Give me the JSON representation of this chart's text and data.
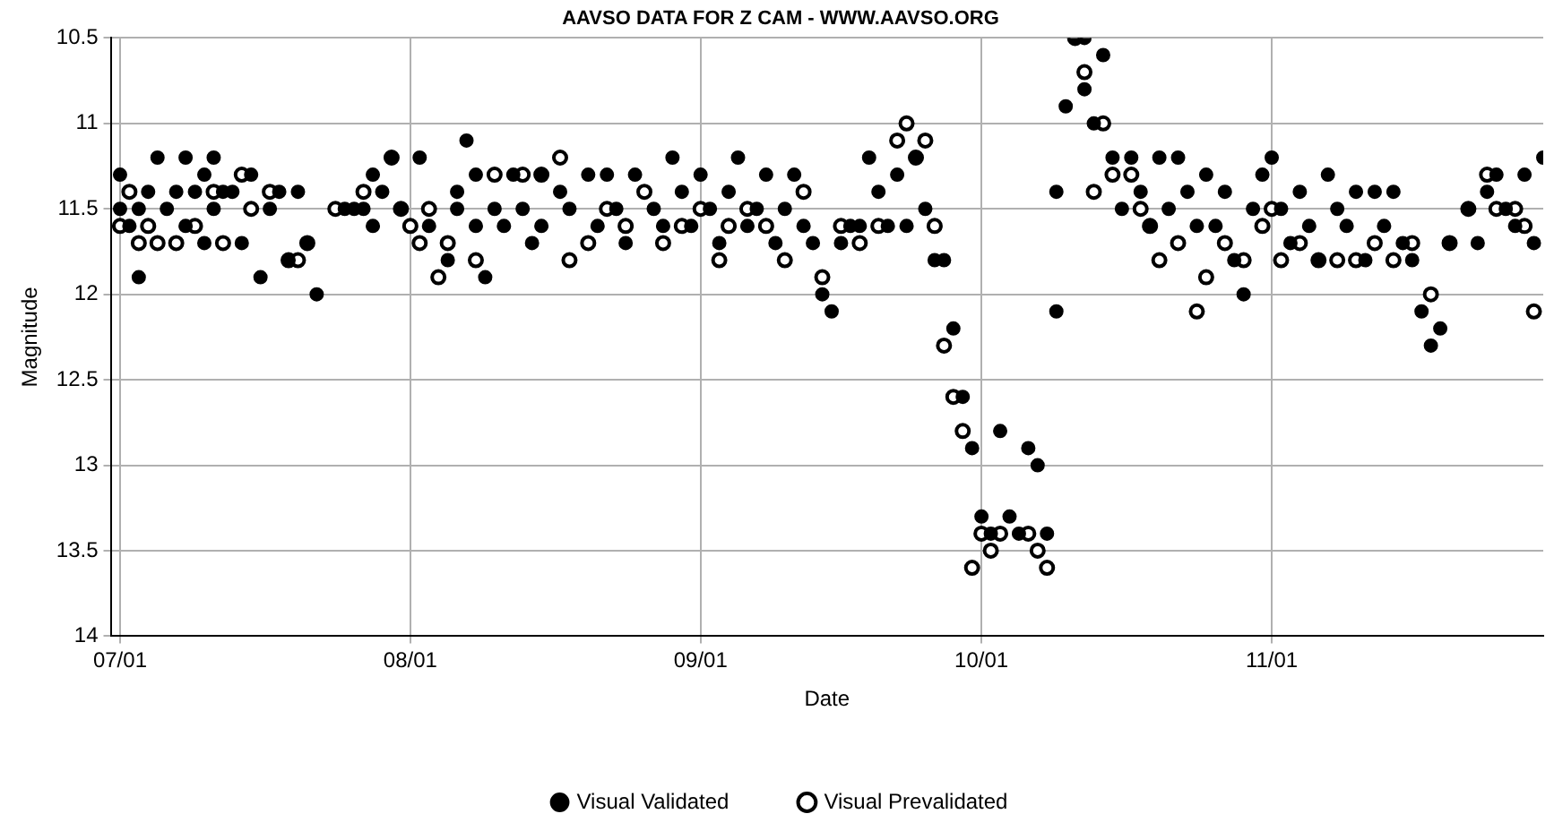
{
  "chart_data": {
    "type": "scatter",
    "title": "AAVSO DATA FOR Z CAM - WWW.AAVSO.ORG",
    "xlabel": "Date",
    "ylabel": "Magnitude",
    "xlim": [
      "--06-30",
      "--11-30"
    ],
    "xticks": [
      {
        "value": "--07-01",
        "label": "07/01"
      },
      {
        "value": "--08-01",
        "label": "08/01"
      },
      {
        "value": "--09-01",
        "label": "09/01"
      },
      {
        "value": "--10-01",
        "label": "10/01"
      },
      {
        "value": "--11-01",
        "label": "11/01"
      }
    ],
    "ylim": [
      14,
      10.5
    ],
    "yticks": [
      10.5,
      11,
      11.5,
      12,
      12.5,
      13,
      13.5,
      14
    ],
    "grid": true,
    "legend": "bottom",
    "marker": "circle",
    "series": [
      {
        "name": "Visual Validated",
        "color": "#000000",
        "x": [
          "--07-01",
          "--07-01",
          "--07-02",
          "--07-03",
          "--07-03",
          "--07-04",
          "--07-05",
          "--07-06",
          "--07-07",
          "--07-08",
          "--07-08",
          "--07-09",
          "--07-10",
          "--07-10",
          "--07-11",
          "--07-11",
          "--07-12",
          "--07-13",
          "--07-14",
          "--07-15",
          "--07-16",
          "--07-17",
          "--07-18",
          "--07-19",
          "--07-20",
          "--07-21",
          "--07-22",
          "--07-25",
          "--07-26",
          "--07-27",
          "--07-28",
          "--07-28",
          "--07-29",
          "--07-30",
          "--07-31",
          "--08-02",
          "--08-03",
          "--08-05",
          "--08-06",
          "--08-06",
          "--08-07",
          "--08-08",
          "--08-08",
          "--08-09",
          "--08-10",
          "--08-11",
          "--08-12",
          "--08-13",
          "--08-14",
          "--08-15",
          "--08-15",
          "--08-17",
          "--08-18",
          "--08-20",
          "--08-21",
          "--08-22",
          "--08-23",
          "--08-24",
          "--08-25",
          "--08-27",
          "--08-28",
          "--08-29",
          "--08-30",
          "--08-31",
          "--09-01",
          "--09-02",
          "--09-03",
          "--09-04",
          "--09-05",
          "--09-06",
          "--09-07",
          "--09-08",
          "--09-09",
          "--09-10",
          "--09-11",
          "--09-12",
          "--09-13",
          "--09-14",
          "--09-15",
          "--09-16",
          "--09-17",
          "--09-18",
          "--09-19",
          "--09-20",
          "--09-21",
          "--09-22",
          "--09-23",
          "--09-24",
          "--09-25",
          "--09-26",
          "--09-27",
          "--09-28",
          "--09-29",
          "--09-30",
          "--10-01",
          "--10-02",
          "--10-03",
          "--10-04",
          "--10-05",
          "--10-06",
          "--10-07",
          "--10-08",
          "--10-09",
          "--10-09",
          "--10-10",
          "--10-11",
          "--10-12",
          "--10-12",
          "--10-13",
          "--10-14",
          "--10-15",
          "--10-16",
          "--10-17",
          "--10-18",
          "--10-19",
          "--10-20",
          "--10-21",
          "--10-22",
          "--10-23",
          "--10-24",
          "--10-25",
          "--10-26",
          "--10-27",
          "--10-28",
          "--10-29",
          "--10-30",
          "--10-31",
          "--11-01",
          "--11-02",
          "--11-03",
          "--11-04",
          "--11-05",
          "--11-06",
          "--11-07",
          "--11-08",
          "--11-09",
          "--11-10",
          "--11-11",
          "--11-12",
          "--11-13",
          "--11-14",
          "--11-15",
          "--11-16",
          "--11-17",
          "--11-18",
          "--11-19",
          "--11-20",
          "--11-22",
          "--11-23",
          "--11-24",
          "--11-25",
          "--11-26",
          "--11-27",
          "--11-28",
          "--11-29",
          "--11-30"
        ],
        "values": [
          11.5,
          11.3,
          11.6,
          11.5,
          11.9,
          11.4,
          11.2,
          11.5,
          11.4,
          11.2,
          11.6,
          11.4,
          11.7,
          11.3,
          11.2,
          11.5,
          11.4,
          11.4,
          11.7,
          11.3,
          11.9,
          11.5,
          11.4,
          11.8,
          11.4,
          11.7,
          12.0,
          11.5,
          11.5,
          11.5,
          11.3,
          11.6,
          11.4,
          11.2,
          11.5,
          11.2,
          11.6,
          11.8,
          11.5,
          11.4,
          11.1,
          11.3,
          11.6,
          11.9,
          11.5,
          11.6,
          11.3,
          11.5,
          11.7,
          11.3,
          11.6,
          11.4,
          11.5,
          11.3,
          11.6,
          11.3,
          11.5,
          11.7,
          11.3,
          11.5,
          11.6,
          11.2,
          11.4,
          11.6,
          11.3,
          11.5,
          11.7,
          11.4,
          11.2,
          11.6,
          11.5,
          11.3,
          11.7,
          11.5,
          11.3,
          11.6,
          11.7,
          12.0,
          12.1,
          11.7,
          11.6,
          11.6,
          11.2,
          11.4,
          11.6,
          11.3,
          11.6,
          11.2,
          11.5,
          11.8,
          11.8,
          12.2,
          12.6,
          12.9,
          13.3,
          13.4,
          12.8,
          13.3,
          13.4,
          12.9,
          13.0,
          13.4,
          12.1,
          11.4,
          10.9,
          10.5,
          10.5,
          10.8,
          11.0,
          10.6,
          11.2,
          11.5,
          11.2,
          11.4,
          11.6,
          11.2,
          11.5,
          11.2,
          11.4,
          11.6,
          11.3,
          11.6,
          11.4,
          11.8,
          12.0,
          11.5,
          11.3,
          11.2,
          11.5,
          11.7,
          11.4,
          11.6,
          11.8,
          11.3,
          11.5,
          11.6,
          11.4,
          11.8,
          11.4,
          11.6,
          11.4,
          11.7,
          11.8,
          12.1,
          12.3,
          12.2,
          11.7,
          11.5,
          11.7,
          11.4,
          11.3,
          11.5,
          11.6,
          11.3,
          11.7,
          11.2
        ]
      },
      {
        "name": "Visual Prevalidated",
        "color": "#000000",
        "x": [
          "--07-01",
          "--07-02",
          "--07-03",
          "--07-04",
          "--07-05",
          "--07-07",
          "--07-09",
          "--07-11",
          "--07-12",
          "--07-14",
          "--07-15",
          "--07-17",
          "--07-19",
          "--07-20",
          "--07-21",
          "--07-24",
          "--07-27",
          "--07-30",
          "--07-31",
          "--08-01",
          "--08-02",
          "--08-03",
          "--08-04",
          "--08-05",
          "--08-08",
          "--08-10",
          "--08-13",
          "--08-15",
          "--08-17",
          "--08-18",
          "--08-20",
          "--08-22",
          "--08-24",
          "--08-26",
          "--08-28",
          "--08-30",
          "--09-01",
          "--09-03",
          "--09-04",
          "--09-06",
          "--09-08",
          "--09-10",
          "--09-12",
          "--09-14",
          "--09-16",
          "--09-18",
          "--09-20",
          "--09-22",
          "--09-23",
          "--09-24",
          "--09-25",
          "--09-26",
          "--09-27",
          "--09-28",
          "--09-29",
          "--09-30",
          "--10-01",
          "--10-02",
          "--10-03",
          "--10-06",
          "--10-07",
          "--10-08",
          "--10-11",
          "--10-12",
          "--10-13",
          "--10-14",
          "--10-15",
          "--10-17",
          "--10-18",
          "--10-19",
          "--10-20",
          "--10-22",
          "--10-24",
          "--10-25",
          "--10-27",
          "--10-29",
          "--10-31",
          "--11-01",
          "--11-02",
          "--11-04",
          "--11-06",
          "--11-08",
          "--11-10",
          "--11-12",
          "--11-14",
          "--11-16",
          "--11-18",
          "--11-20",
          "--11-22",
          "--11-24",
          "--11-25",
          "--11-27",
          "--11-28",
          "--11-29"
        ],
        "values": [
          11.6,
          11.4,
          11.7,
          11.6,
          11.7,
          11.7,
          11.6,
          11.4,
          11.7,
          11.3,
          11.5,
          11.4,
          11.8,
          11.8,
          11.7,
          11.5,
          11.4,
          11.2,
          11.5,
          11.6,
          11.7,
          11.5,
          11.9,
          11.7,
          11.8,
          11.3,
          11.3,
          11.3,
          11.2,
          11.8,
          11.7,
          11.5,
          11.6,
          11.4,
          11.7,
          11.6,
          11.5,
          11.8,
          11.6,
          11.5,
          11.6,
          11.8,
          11.4,
          11.9,
          11.6,
          11.7,
          11.6,
          11.1,
          11.0,
          11.2,
          11.1,
          11.6,
          12.3,
          12.6,
          12.8,
          13.6,
          13.4,
          13.5,
          13.4,
          13.4,
          13.5,
          13.6,
          10.5,
          10.7,
          11.4,
          11.0,
          11.3,
          11.3,
          11.5,
          11.6,
          11.8,
          11.7,
          12.1,
          11.9,
          11.7,
          11.8,
          11.6,
          11.5,
          11.8,
          11.7,
          11.8,
          11.8,
          11.8,
          11.7,
          11.8,
          11.7,
          12.0,
          11.7,
          11.5,
          11.3,
          11.5,
          11.5,
          11.6,
          12.1
        ]
      }
    ]
  }
}
